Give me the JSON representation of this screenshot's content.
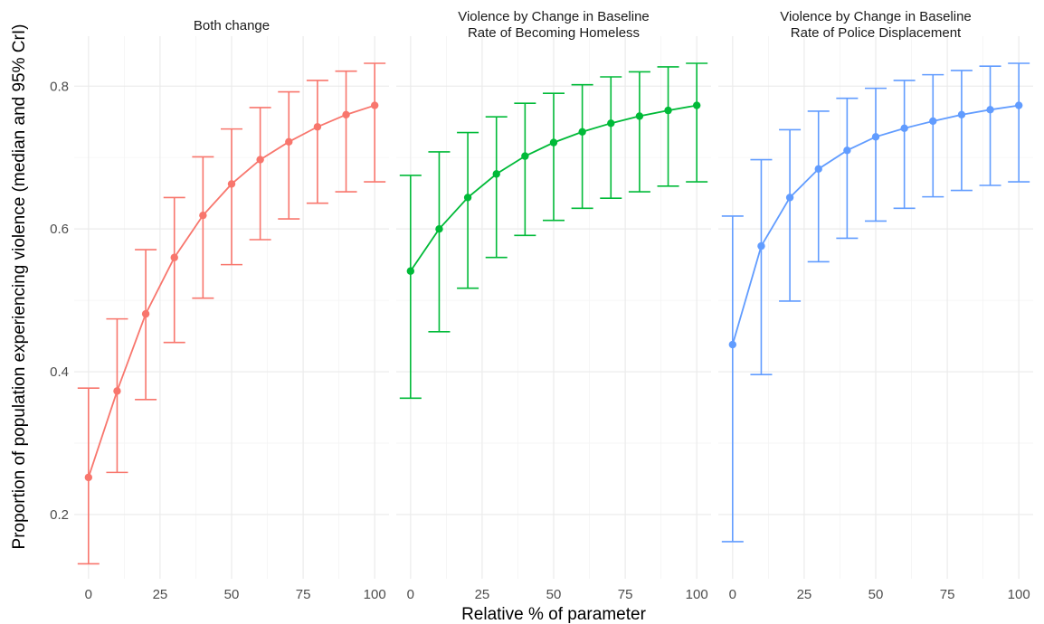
{
  "chart_data": {
    "type": "line",
    "xlabel": "Relative % of parameter",
    "ylabel": "Proportion of population experiencing violence (median and 95% CrI)",
    "x_ticks": [
      0,
      25,
      50,
      75,
      100
    ],
    "y_ticks": [
      0.2,
      0.4,
      0.6,
      0.8
    ],
    "xlim": [
      -5,
      105
    ],
    "ylim": [
      0.11,
      0.87
    ],
    "grid": true,
    "panels": [
      {
        "title_lines": [
          "Both change"
        ],
        "color": "#F8766D",
        "x": [
          0,
          10,
          20,
          30,
          40,
          50,
          60,
          70,
          80,
          90,
          100
        ],
        "median": [
          0.252,
          0.373,
          0.481,
          0.56,
          0.619,
          0.663,
          0.697,
          0.722,
          0.743,
          0.76,
          0.773
        ],
        "lower": [
          0.131,
          0.259,
          0.361,
          0.441,
          0.503,
          0.55,
          0.585,
          0.614,
          0.636,
          0.652,
          0.666
        ],
        "upper": [
          0.377,
          0.474,
          0.571,
          0.644,
          0.701,
          0.74,
          0.77,
          0.792,
          0.808,
          0.821,
          0.832
        ]
      },
      {
        "title_lines": [
          "Violence by Change in Baseline",
          "Rate of Becoming Homeless"
        ],
        "color": "#00BA38",
        "x": [
          0,
          10,
          20,
          30,
          40,
          50,
          60,
          70,
          80,
          90,
          100
        ],
        "median": [
          0.541,
          0.6,
          0.644,
          0.677,
          0.702,
          0.721,
          0.736,
          0.748,
          0.758,
          0.766,
          0.773
        ],
        "lower": [
          0.363,
          0.456,
          0.517,
          0.56,
          0.591,
          0.612,
          0.629,
          0.643,
          0.652,
          0.66,
          0.666
        ],
        "upper": [
          0.675,
          0.708,
          0.735,
          0.757,
          0.776,
          0.79,
          0.802,
          0.813,
          0.82,
          0.827,
          0.832
        ]
      },
      {
        "title_lines": [
          "Violence by Change in Baseline",
          "Rate of Police Displacement"
        ],
        "color": "#619CFF",
        "x": [
          0,
          10,
          20,
          30,
          40,
          50,
          60,
          70,
          80,
          90,
          100
        ],
        "median": [
          0.438,
          0.576,
          0.644,
          0.684,
          0.71,
          0.729,
          0.741,
          0.751,
          0.76,
          0.767,
          0.773
        ],
        "lower": [
          0.162,
          0.396,
          0.499,
          0.554,
          0.587,
          0.611,
          0.629,
          0.645,
          0.654,
          0.661,
          0.666
        ],
        "upper": [
          0.618,
          0.697,
          0.739,
          0.765,
          0.783,
          0.797,
          0.808,
          0.816,
          0.822,
          0.828,
          0.832
        ]
      }
    ]
  }
}
